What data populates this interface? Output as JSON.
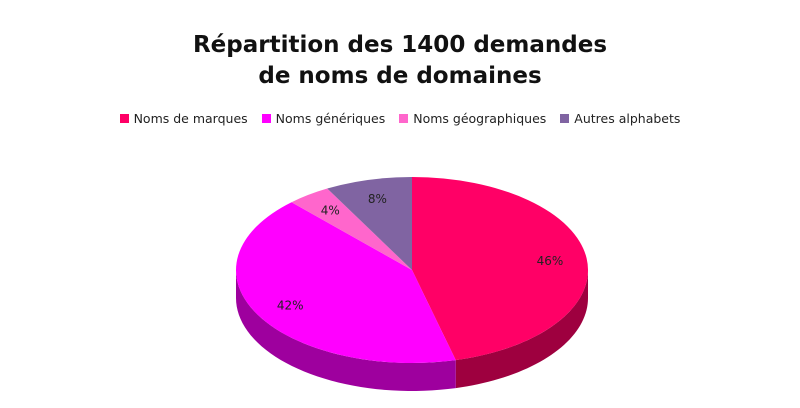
{
  "chart_data": {
    "type": "pie",
    "title": "Répartition des 1400 demandes de noms de domaines",
    "title_lines": [
      "Répartition des 1400 demandes",
      "de noms de domaines"
    ],
    "legend_position": "top",
    "three_d": true,
    "categories": [
      "Noms de marques",
      "Noms génériques",
      "Noms géographiques",
      "Autres alphabets"
    ],
    "values": [
      46,
      42,
      4,
      8
    ],
    "value_labels": [
      "46%",
      "42%",
      "4%",
      "8%"
    ],
    "colors": [
      "#ff0066",
      "#ff00ff",
      "#ff66cc",
      "#8064a2"
    ]
  }
}
